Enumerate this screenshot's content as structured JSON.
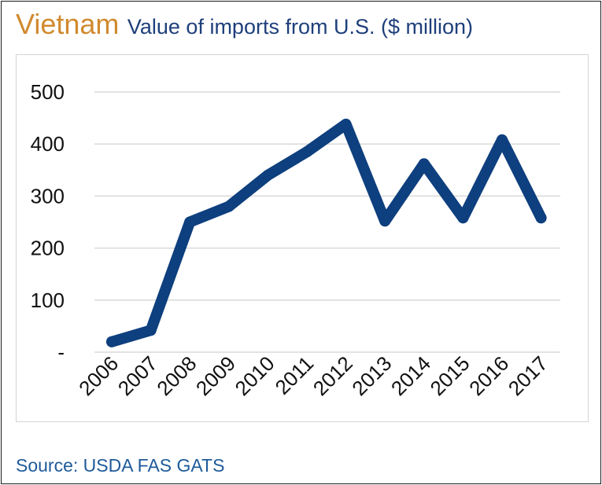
{
  "header": {
    "country": "Vietnam",
    "subtitle": "Value of imports from U.S. ($ million)"
  },
  "footer": {
    "source": "Source: USDA FAS GATS"
  },
  "colors": {
    "line": "#0e3f7e",
    "country_title": "#d08a2e",
    "subtitle": "#1e3f7a",
    "source": "#1e5a9a",
    "grid": "#d9d9d9"
  },
  "chart_data": {
    "type": "line",
    "title": "Vietnam Value of imports from U.S. ($ million)",
    "xlabel": "",
    "ylabel": "",
    "categories": [
      "2006",
      "2007",
      "2008",
      "2009",
      "2010",
      "2011",
      "2012",
      "2013",
      "2014",
      "2015",
      "2016",
      "2017"
    ],
    "series": [
      {
        "values": [
          20,
          42,
          250,
          280,
          340,
          385,
          438,
          252,
          362,
          258,
          408,
          258
        ]
      }
    ],
    "ylim": [
      0,
      500
    ],
    "y_ticks": [
      {
        "value": 0,
        "label": "-"
      },
      {
        "value": 100,
        "label": "100"
      },
      {
        "value": 200,
        "label": "200"
      },
      {
        "value": 300,
        "label": "300"
      },
      {
        "value": 400,
        "label": "400"
      },
      {
        "value": 500,
        "label": "500"
      }
    ],
    "grid": true,
    "legend": "none"
  }
}
